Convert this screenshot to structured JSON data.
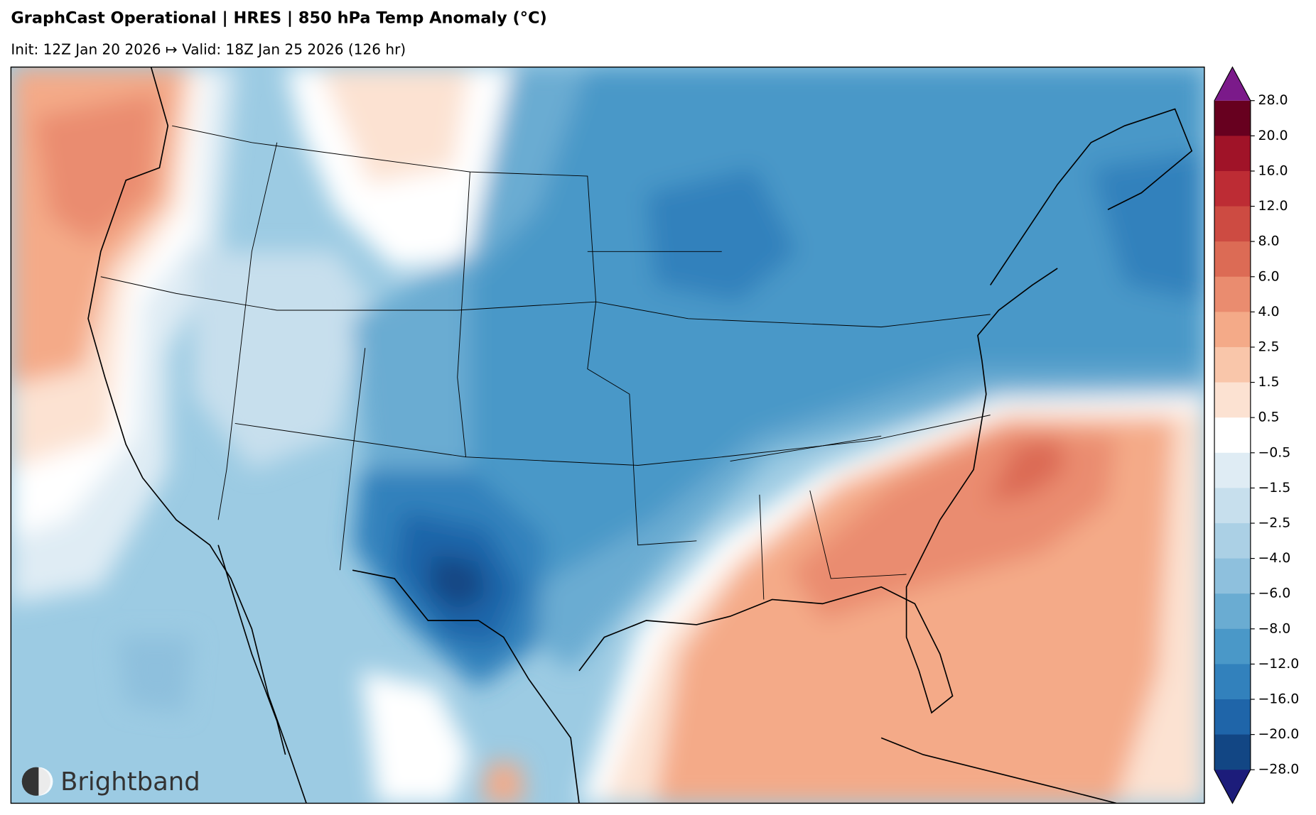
{
  "title": "GraphCast Operational | HRES | 850 hPa Temp Anomaly (°C)",
  "subtitle": "Init: 12Z Jan 20 2026 ↦ Valid: 18Z Jan 25 2026 (126 hr)",
  "logo": "Brightband",
  "colorbar": {
    "ticks": [
      {
        "value": 28,
        "label": "28.0"
      },
      {
        "value": 20,
        "label": "20.0"
      },
      {
        "value": 16,
        "label": "16.0"
      },
      {
        "value": 12,
        "label": "12.0"
      },
      {
        "value": 8,
        "label": "8.0"
      },
      {
        "value": 6,
        "label": "6.0"
      },
      {
        "value": 4,
        "label": "4.0"
      },
      {
        "value": 2.5,
        "label": "2.5"
      },
      {
        "value": 1.5,
        "label": "1.5"
      },
      {
        "value": 0.5,
        "label": "0.5"
      },
      {
        "value": -0.5,
        "label": "−0.5"
      },
      {
        "value": -1.5,
        "label": "−1.5"
      },
      {
        "value": -2.5,
        "label": "−2.5"
      },
      {
        "value": -4,
        "label": "−4.0"
      },
      {
        "value": -6,
        "label": "−6.0"
      },
      {
        "value": -8,
        "label": "−8.0"
      },
      {
        "value": -12,
        "label": "−12.0"
      },
      {
        "value": -16,
        "label": "−16.0"
      },
      {
        "value": -20,
        "label": "−20.0"
      },
      {
        "value": -28,
        "label": "−28.0"
      }
    ],
    "colors": [
      "#67001f",
      "#a01328",
      "#bd2c34",
      "#cd4b42",
      "#dc6b55",
      "#ea8c6f",
      "#f4aa88",
      "#f9c6aa",
      "#fce2d2",
      "#ffffff",
      "#dfecf4",
      "#c7dfed",
      "#abd0e5",
      "#8ec0dd",
      "#6aacd2",
      "#4a98c8",
      "#3281bc",
      "#1f65a9",
      "#124684"
    ],
    "over_color": "#7b1a8a",
    "under_color": "#1c1c7a"
  }
}
